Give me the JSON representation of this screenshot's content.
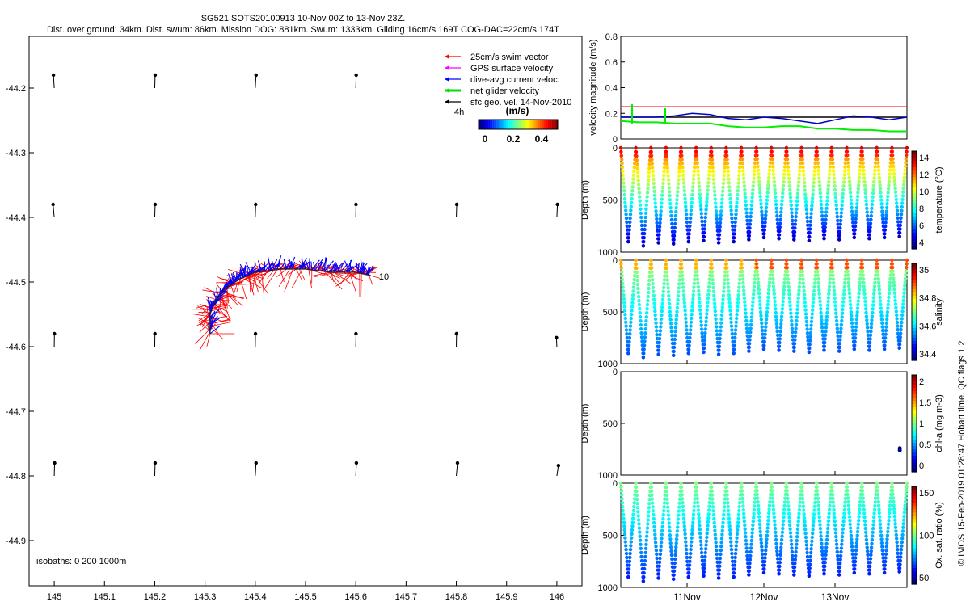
{
  "title": {
    "line1": "SG521 SOTS20100913 10-Nov 00Z to 13-Nov 23Z.",
    "line2": "Dist. over ground: 34km. Dist. swum: 86km. Mission DOG: 881km. Swum: 1333km. Gliding 16cm/s 169T COG-DAC=22cm/s 174T"
  },
  "side_note": "© IMOS 15-Feb-2019 01:28:47 Hobart time. QC flags 1  2",
  "colors": {
    "swim": "#ff0000",
    "gps": "#ff00ff",
    "dac": "#0000ff",
    "net": "#00dd00",
    "sfc": "#000000"
  },
  "chart_data": [
    {
      "type": "scatter",
      "name": "track-map",
      "xlim": [
        144.95,
        146.05
      ],
      "ylim": [
        -44.97,
        -44.12
      ],
      "xticks": [
        "145",
        "145.1",
        "145.2",
        "145.3",
        "145.4",
        "145.5",
        "145.6",
        "145.7",
        "145.8",
        "145.9",
        "146"
      ],
      "yticks": [
        "-44.2",
        "-44.3",
        "-44.4",
        "-44.5",
        "-44.6",
        "-44.7",
        "-44.8",
        "-44.9"
      ],
      "legend": {
        "items": [
          "25cm/s swim vector",
          "GPS surface velocity",
          "dive-avg current veloc.",
          "net glider velocity",
          "sfc geo. vel. 14-Nov-2010"
        ],
        "scale_label": "4h",
        "cbar_title": "(m/s)",
        "cbar_ticks": [
          "0",
          "0.2",
          "0.4"
        ]
      },
      "end_label": "10",
      "isobaths": "isobaths: 0   200   1000m",
      "track": [
        [
          145.31,
          -44.58
        ],
        [
          145.31,
          -44.55
        ],
        [
          145.32,
          -44.53
        ],
        [
          145.34,
          -44.51
        ],
        [
          145.37,
          -44.495
        ],
        [
          145.4,
          -44.485
        ],
        [
          145.45,
          -44.48
        ],
        [
          145.5,
          -44.48
        ],
        [
          145.55,
          -44.485
        ],
        [
          145.6,
          -44.485
        ],
        [
          145.63,
          -44.49
        ]
      ],
      "geo_rows_lat": [
        -44.2,
        -44.4,
        -44.6,
        -44.8
      ],
      "geo_cols_lon": [
        145.0,
        145.2,
        145.4,
        145.6,
        145.8,
        146.0
      ],
      "geo_vectors": [
        [
          [
            -0.2,
            1
          ],
          [
            0.1,
            1
          ],
          [
            0.2,
            1
          ],
          [
            0.1,
            1
          ],
          null,
          null
        ],
        [
          [
            -0.3,
            1
          ],
          [
            0.1,
            1
          ],
          [
            0.1,
            1
          ],
          [
            0.05,
            1
          ],
          [
            0.1,
            1
          ],
          [
            0.15,
            1
          ]
        ],
        [
          [
            0.05,
            1
          ],
          [
            0.05,
            1
          ],
          [
            0.05,
            1
          ],
          [
            0.05,
            1
          ],
          [
            0.05,
            1
          ],
          [
            -0.1,
            0.7
          ]
        ],
        [
          [
            0.1,
            1
          ],
          [
            0.1,
            1
          ],
          [
            0.2,
            1
          ],
          [
            0.15,
            1
          ],
          [
            0.3,
            1
          ],
          [
            0.4,
            0.8
          ]
        ]
      ]
    },
    {
      "type": "line",
      "name": "velocity-magnitude",
      "ylabel": "velocity magnitude (m/s)",
      "ylim": [
        0,
        0.8
      ],
      "yticks": [
        "0",
        "0.2",
        "0.4",
        "0.6",
        "0.8"
      ],
      "series": [
        {
          "color": "#ff0000",
          "values": [
            0.25,
            0.25
          ]
        },
        {
          "color": "#000000",
          "values": [
            0.17,
            0.17
          ]
        },
        {
          "color": "#0000cc",
          "values": [
            0.17,
            0.17,
            0.17,
            0.18,
            0.2,
            0.19,
            0.16,
            0.15,
            0.17,
            0.16,
            0.14,
            0.12,
            0.15,
            0.18,
            0.17,
            0.15,
            0.17
          ]
        },
        {
          "color": "#00ee00",
          "values": [
            0.14,
            0.13,
            0.13,
            0.12,
            0.12,
            0.12,
            0.1,
            0.09,
            0.09,
            0.1,
            0.1,
            0.08,
            0.08,
            0.07,
            0.07,
            0.06,
            0.06
          ]
        }
      ]
    },
    {
      "type": "scatter",
      "name": "temperature",
      "ylabel": "Depth (m)",
      "cbar_label": "temperature (°C)",
      "cbar_ticks": [
        "4",
        "6",
        "8",
        "10",
        "12",
        "14"
      ],
      "yticks": [
        "0",
        "500",
        "1000"
      ],
      "dives": 19,
      "maxdepth": [
        900,
        940,
        910,
        920,
        900,
        890,
        910,
        900,
        880,
        860,
        870,
        880,
        890,
        870,
        880,
        860,
        870,
        860,
        850
      ]
    },
    {
      "type": "scatter",
      "name": "salinity",
      "ylabel": "Depth (m)",
      "cbar_label": "salinity",
      "cbar_ticks": [
        "34.4",
        "34.6",
        "34.8",
        "35"
      ],
      "yticks": [
        "0",
        "500",
        "1000"
      ],
      "dives": 19
    },
    {
      "type": "scatter",
      "name": "chlorophyll",
      "ylabel": "Depth (m)",
      "cbar_label": "chl-a (mg m-3)",
      "cbar_ticks": [
        "0",
        "0.5",
        "1",
        "1.5",
        "2"
      ],
      "yticks": [
        "0",
        "500",
        "1000"
      ],
      "points": [
        [
          0.975,
          740
        ],
        [
          0.975,
          760
        ]
      ]
    },
    {
      "type": "scatter",
      "name": "oxygen",
      "ylabel": "Depth (m)",
      "cbar_label": "Ox. sat. ratio (%)",
      "cbar_ticks": [
        "50",
        "100",
        "150"
      ],
      "yticks": [
        "0",
        "500",
        "1000"
      ],
      "dives": 19
    }
  ],
  "time_axis": [
    "11Nov",
    "12Nov",
    "13Nov"
  ]
}
